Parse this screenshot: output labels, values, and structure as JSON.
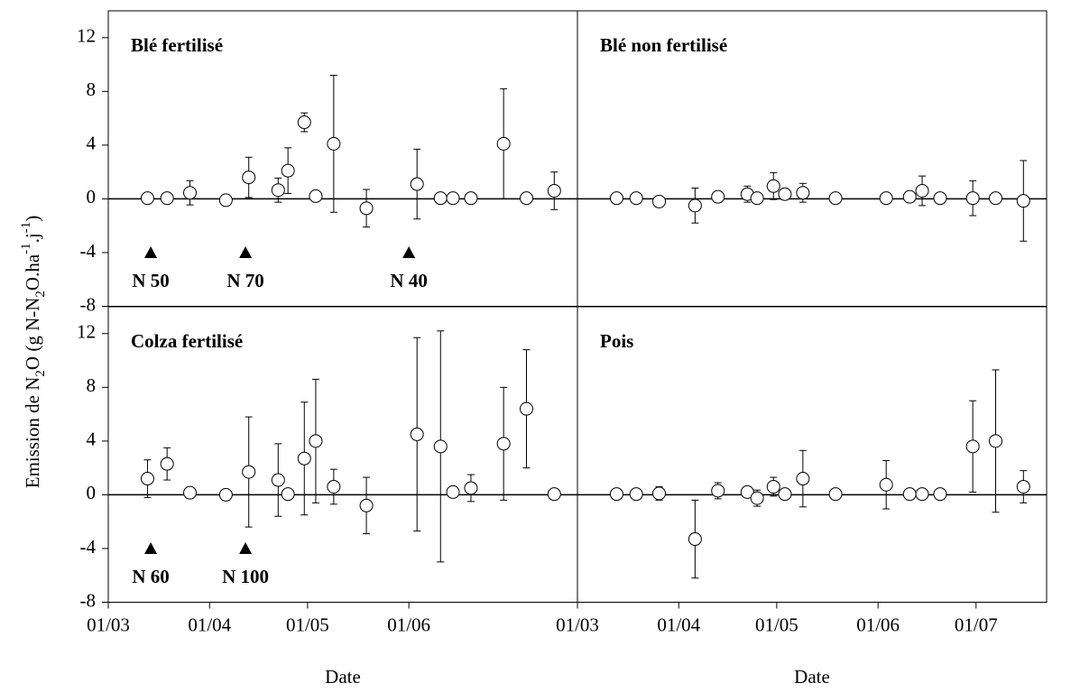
{
  "chart_data": [
    {
      "type": "scatter",
      "title": "Blé fertilisé",
      "ylabel": [
        {
          "text": "Emission de N"
        },
        {
          "text": "2",
          "shift": "sub"
        },
        {
          "text": "O (g N-N"
        },
        {
          "text": "2",
          "shift": "sub"
        },
        {
          "text": "O.ha"
        },
        {
          "text": "-1",
          "shift": "super"
        },
        {
          "text": ".j"
        },
        {
          "text": "-1",
          "shift": "super"
        },
        {
          "text": ")"
        }
      ],
      "xlim": [
        60,
        203.6
      ],
      "ylim": [
        -8,
        14
      ],
      "yticks": [
        -8,
        -4,
        0,
        4,
        8,
        12
      ],
      "reference_line": 0,
      "x": [
        72,
        78,
        85,
        96,
        103,
        112,
        115,
        120,
        123.5,
        129,
        139,
        154.5,
        161.7,
        165.5,
        171,
        181,
        188,
        196.5
      ],
      "values": [
        0.05,
        0.05,
        0.45,
        -0.1,
        1.6,
        0.65,
        2.1,
        5.7,
        0.2,
        4.1,
        -0.7,
        1.1,
        0.05,
        0.05,
        0.05,
        4.1,
        0.05,
        0.6
      ],
      "errors": [
        0,
        0,
        0.9,
        0.3,
        1.5,
        0.9,
        1.7,
        0.7,
        0,
        5.1,
        1.4,
        2.6,
        0,
        0,
        0,
        4.1,
        0,
        1.4
      ],
      "annotations": [
        {
          "x": 73,
          "y": -4,
          "label": "N 50"
        },
        {
          "x": 102,
          "y": -4,
          "label": "N 70"
        },
        {
          "x": 152,
          "y": -4,
          "label": "N 40"
        }
      ]
    },
    {
      "type": "scatter",
      "title": "Blé non fertilisé",
      "xlim": [
        60,
        203.6
      ],
      "ylim": [
        -8,
        14
      ],
      "reference_line": 0,
      "x": [
        72,
        78,
        85,
        96,
        103,
        112,
        115,
        120,
        123.5,
        129,
        139,
        154.5,
        161.7,
        165.5,
        171,
        181,
        188,
        196.5
      ],
      "values": [
        0.05,
        0.05,
        -0.2,
        -0.5,
        0.15,
        0.35,
        0.05,
        0.95,
        0.35,
        0.45,
        0.05,
        0.05,
        0.15,
        0.6,
        0.05,
        0.05,
        0.05,
        -0.15
      ],
      "errors": [
        0,
        0,
        0.3,
        1.3,
        0,
        0.6,
        0,
        1.0,
        0.4,
        0.7,
        0,
        0,
        0,
        1.1,
        0,
        1.3,
        0,
        3.0
      ]
    },
    {
      "type": "scatter",
      "title": "Colza fertilisé",
      "xlabel": "Date",
      "xlim": [
        60,
        203.6
      ],
      "ylim": [
        -8,
        14
      ],
      "yticks": [
        -8,
        -4,
        0,
        4,
        8,
        12
      ],
      "reference_line": 0,
      "xticks": [
        {
          "value": 60,
          "label": "01/03"
        },
        {
          "value": 91,
          "label": "01/04"
        },
        {
          "value": 121,
          "label": "01/05"
        },
        {
          "value": 152,
          "label": "01/06"
        }
      ],
      "x": [
        72,
        78,
        85,
        96,
        103,
        112,
        115,
        120,
        123.5,
        129,
        139,
        154.5,
        161.7,
        165.5,
        171,
        181,
        188,
        196.5
      ],
      "values": [
        1.2,
        2.3,
        0.15,
        0,
        1.7,
        1.1,
        0.05,
        2.7,
        4.0,
        0.6,
        -0.8,
        4.5,
        3.6,
        0.2,
        0.5,
        3.8,
        6.4,
        0.05
      ],
      "errors": [
        1.4,
        1.2,
        0,
        0,
        4.1,
        2.7,
        0,
        4.2,
        4.6,
        1.3,
        2.1,
        7.2,
        8.6,
        0,
        1.0,
        4.2,
        4.4,
        0
      ],
      "annotations": [
        {
          "x": 73,
          "y": -4,
          "label": "N 60"
        },
        {
          "x": 102,
          "y": -4,
          "label": "N 100"
        }
      ]
    },
    {
      "type": "scatter",
      "title": "Pois",
      "xlabel": "Date",
      "xlim": [
        60,
        203.6
      ],
      "ylim": [
        -8,
        14
      ],
      "reference_line": 0,
      "xticks": [
        {
          "value": 60,
          "label": "01/03"
        },
        {
          "value": 91,
          "label": "01/04"
        },
        {
          "value": 121,
          "label": "01/05"
        },
        {
          "value": 152,
          "label": "01/06"
        },
        {
          "value": 182,
          "label": "01/07"
        }
      ],
      "x": [
        72,
        78,
        85,
        96,
        103,
        112,
        115,
        120,
        123.5,
        129,
        139,
        154.5,
        161.7,
        165.5,
        171,
        181,
        188,
        196.5
      ],
      "values": [
        0.05,
        0.05,
        0.1,
        -3.3,
        0.3,
        0.2,
        -0.25,
        0.6,
        0.05,
        1.2,
        0.05,
        0.75,
        0.05,
        0.05,
        0.05,
        3.6,
        4.0,
        0.6
      ],
      "errors": [
        0,
        0,
        0.5,
        2.9,
        0.6,
        0,
        0.6,
        0.7,
        0,
        2.1,
        0,
        1.8,
        0,
        0,
        0,
        3.4,
        5.3,
        1.2
      ]
    }
  ]
}
